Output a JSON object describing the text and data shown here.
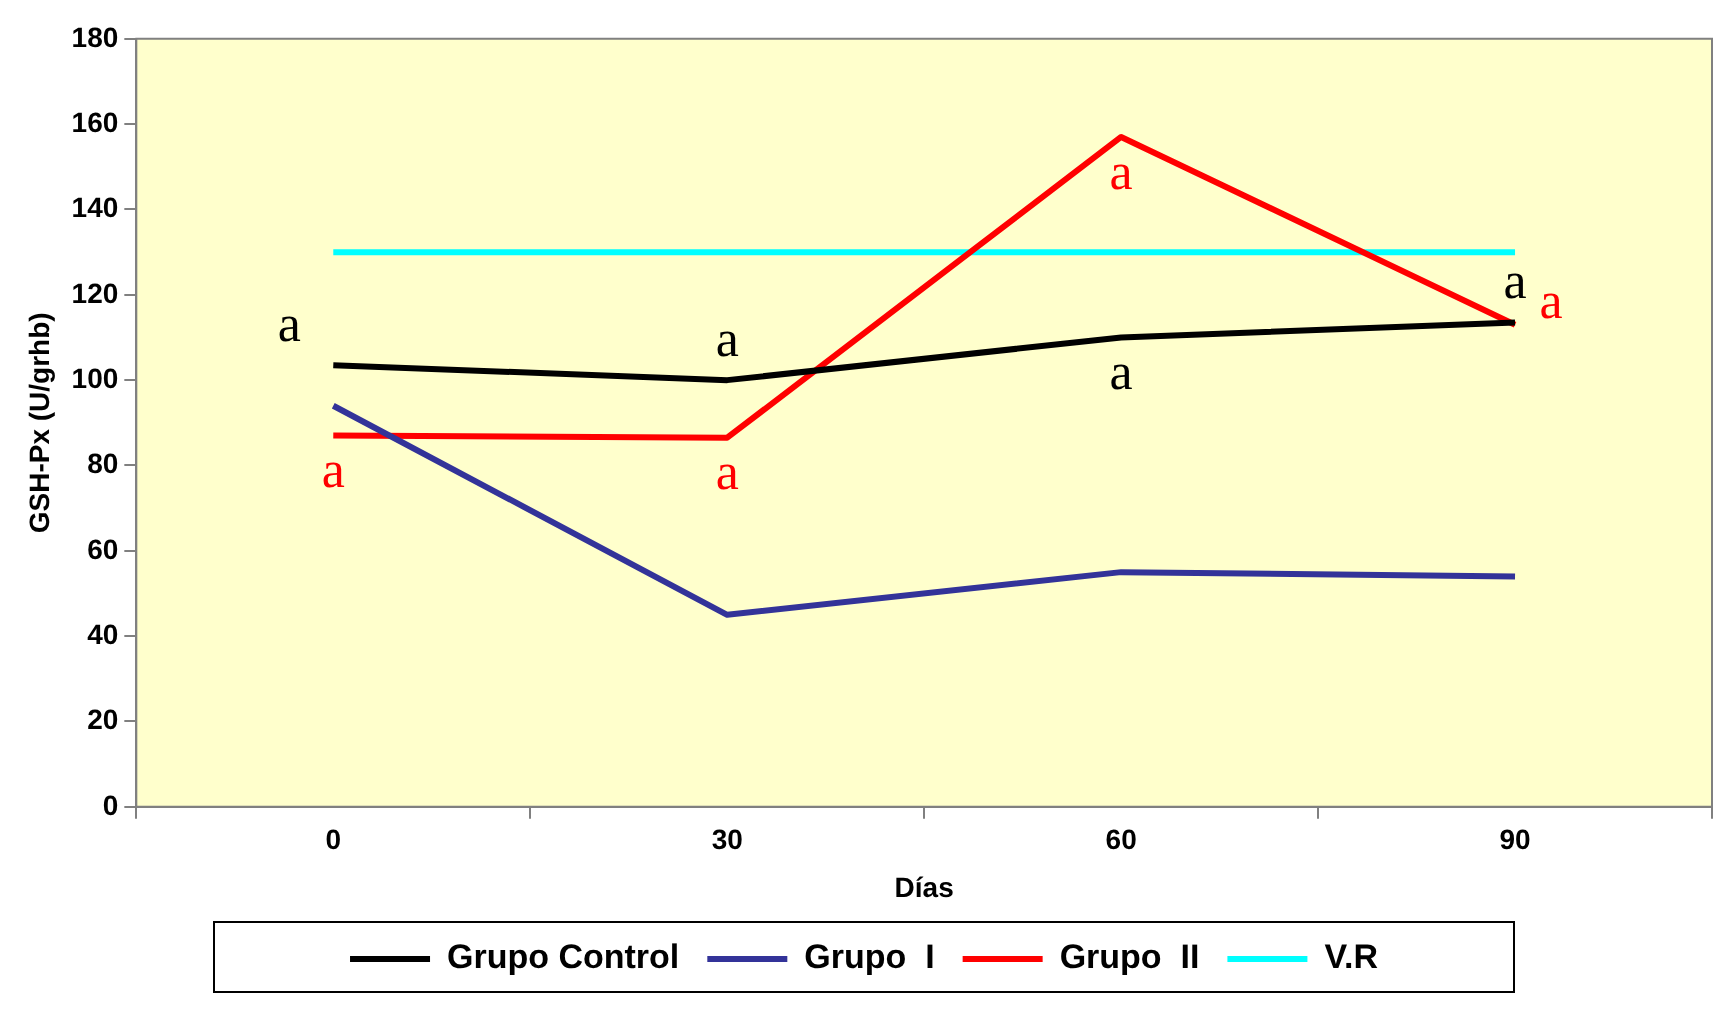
{
  "chart_data": {
    "type": "line",
    "xlabel": "Días",
    "ylabel": "GSH-Px (U/grhb)",
    "categories": [
      "0",
      "30",
      "60",
      "90"
    ],
    "series": [
      {
        "name": "Grupo Control",
        "color": "#000000",
        "values": [
          103.5,
          100,
          110,
          113.5
        ],
        "value_labels": [
          "a",
          "a",
          "a",
          "a"
        ]
      },
      {
        "name": "Grupo  I",
        "color": "#333399",
        "values": [
          94,
          45,
          55,
          54
        ]
      },
      {
        "name": "Grupo  II",
        "color": "#ff0000",
        "values": [
          87,
          86.5,
          157,
          113
        ],
        "value_labels": [
          "a",
          "a",
          "a",
          "a"
        ]
      },
      {
        "name": "V.R",
        "color": "#00ffff",
        "values": [
          130,
          130,
          130,
          130
        ]
      }
    ],
    "ylim": [
      0,
      180
    ],
    "yticks": [
      0,
      20,
      40,
      60,
      80,
      100,
      120,
      140,
      160,
      180
    ],
    "grid": false,
    "legend": "bottom",
    "marker": "none",
    "line_style": "solid"
  }
}
